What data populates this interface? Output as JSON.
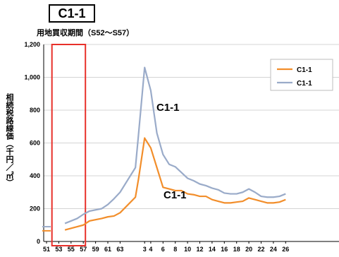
{
  "header": {
    "title": "C1-1",
    "subtitle": "用地買収期間（S52～S57）"
  },
  "chart_data": {
    "type": "line",
    "title": "C1-1",
    "subtitle": "用地買収期間（S52～S57）",
    "ylabel": "相続税路線価（千円／㎡）",
    "xlabel": "",
    "x_ticks": [
      "51",
      "53",
      "55",
      "57",
      "59",
      "61",
      "63",
      "3",
      "4",
      "6",
      "8",
      "10",
      "12",
      "14",
      "16",
      "18",
      "20",
      "22",
      "24",
      "26"
    ],
    "ylim": [
      0,
      1200
    ],
    "yticks": [
      "0",
      "200",
      "400",
      "600",
      "800",
      "1,000",
      "1,200"
    ],
    "grid": true,
    "legend_position": "top-right",
    "highlight_period": [
      "53",
      "57"
    ],
    "annotations": [
      "C1-1",
      "C1-1"
    ],
    "series": [
      {
        "name": "C1-1",
        "color": "#f28e2b",
        "x": [
          51,
          54,
          56,
          57,
          58,
          60,
          61,
          62,
          63,
          1.5,
          2,
          3,
          4,
          5,
          6,
          7,
          8,
          9,
          10,
          11,
          12,
          13,
          14,
          15,
          16,
          17,
          18,
          19,
          20,
          21,
          22,
          23,
          24,
          25,
          26
        ],
        "values": [
          65,
          70,
          90,
          100,
          125,
          140,
          150,
          155,
          175,
          270,
          380,
          630,
          570,
          450,
          330,
          320,
          310,
          310,
          290,
          285,
          275,
          275,
          255,
          245,
          235,
          235,
          240,
          245,
          265,
          255,
          245,
          235,
          235,
          240,
          255
        ]
      },
      {
        "name": "C1-1",
        "color": "#9aabc9",
        "x": [
          51,
          54,
          56,
          57,
          58,
          60,
          61,
          62,
          63,
          1.5,
          2,
          3,
          4,
          5,
          6,
          7,
          8,
          9,
          10,
          11,
          12,
          13,
          14,
          15,
          16,
          17,
          18,
          19,
          20,
          21,
          22,
          23,
          24,
          25,
          26
        ],
        "values": [
          90,
          110,
          140,
          165,
          185,
          200,
          225,
          260,
          300,
          450,
          650,
          1060,
          920,
          660,
          530,
          470,
          455,
          420,
          385,
          370,
          350,
          340,
          325,
          315,
          295,
          290,
          290,
          300,
          320,
          300,
          275,
          270,
          270,
          275,
          290
        ]
      }
    ]
  }
}
